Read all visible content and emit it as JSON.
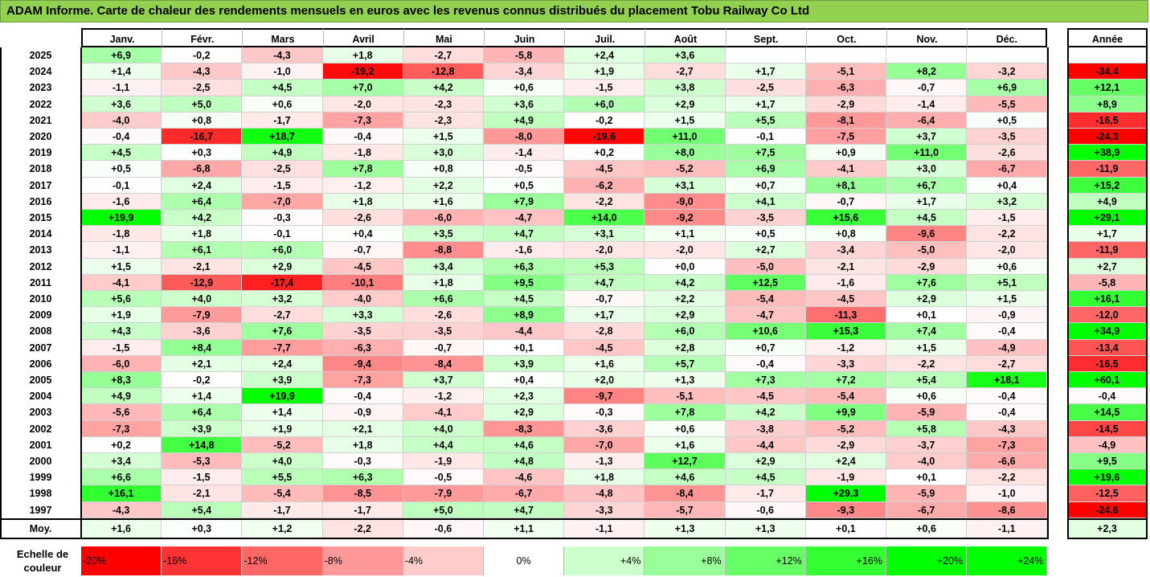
{
  "title": "ADAM Informe. Carte de chaleur des rendements mensuels en euros avec les revenus connus distribués du placement Tobu Railway Co Ltd",
  "chart_data": {
    "type": "heatmap",
    "title": "ADAM Informe. Carte de chaleur des rendements mensuels en euros avec les revenus connus distribués du placement Tobu Railway Co Ltd",
    "columns": [
      "Janv.",
      "Févr.",
      "Mars",
      "Avril",
      "Mai",
      "Juin",
      "Juil.",
      "Août",
      "Sept.",
      "Oct.",
      "Nov.",
      "Déc."
    ],
    "annual_header": "Année",
    "rows": [
      {
        "year": "2025",
        "values": [
          "+6,9",
          "-0,2",
          "-4,3",
          "+1,8",
          "-2,7",
          "-5,8",
          "+2,4",
          "+3,6",
          "",
          "",
          "",
          ""
        ],
        "annual": ""
      },
      {
        "year": "2024",
        "values": [
          "+1,4",
          "-4,3",
          "-1,0",
          "-19,2",
          "-12,8",
          "-3,4",
          "+1,9",
          "-2,7",
          "+1,7",
          "-5,1",
          "+8,2",
          "-3,2"
        ],
        "annual": "-34,4"
      },
      {
        "year": "2023",
        "values": [
          "-1,1",
          "-2,5",
          "+4,5",
          "+7,0",
          "+4,2",
          "+0,6",
          "-1,5",
          "+3,8",
          "-2,5",
          "-6,3",
          "-0,7",
          "+6,9"
        ],
        "annual": "+12,1"
      },
      {
        "year": "2022",
        "values": [
          "+3,6",
          "+5,0",
          "+0,6",
          "-2,0",
          "-2,3",
          "+3,6",
          "+6,0",
          "+2,9",
          "+1,7",
          "-2,9",
          "-1,4",
          "-5,5"
        ],
        "annual": "+8,9"
      },
      {
        "year": "2021",
        "values": [
          "-4,0",
          "+0,8",
          "-1,7",
          "-7,3",
          "-2,3",
          "+4,9",
          "-0,2",
          "+1,5",
          "+5,5",
          "-8,1",
          "-6,4",
          "+0,5"
        ],
        "annual": "-16,5"
      },
      {
        "year": "2020",
        "values": [
          "-0,4",
          "-16,7",
          "+18,7",
          "-0,4",
          "+1,5",
          "-8,0",
          "-19,6",
          "+11,0",
          "-0,1",
          "-7,5",
          "+3,7",
          "-3,5"
        ],
        "annual": "-24,3"
      },
      {
        "year": "2019",
        "values": [
          "+4,5",
          "+0,3",
          "+4,9",
          "-1,8",
          "+3,0",
          "-1,4",
          "+0,2",
          "+8,0",
          "+7,5",
          "+0,9",
          "+11,0",
          "-2,6"
        ],
        "annual": "+38,9"
      },
      {
        "year": "2018",
        "values": [
          "+0,5",
          "-6,8",
          "-2,5",
          "+7,8",
          "+0,8",
          "-0,5",
          "-4,5",
          "-5,2",
          "+6,9",
          "-4,1",
          "+3,0",
          "-6,7"
        ],
        "annual": "-11,9"
      },
      {
        "year": "2017",
        "values": [
          "-0,1",
          "+2,4",
          "-1,5",
          "-1,2",
          "+2,2",
          "+0,5",
          "-6,2",
          "+3,1",
          "+0,7",
          "+8,1",
          "+6,7",
          "+0,4"
        ],
        "annual": "+15,2"
      },
      {
        "year": "2016",
        "values": [
          "-1,6",
          "+6,4",
          "-7,0",
          "+1,8",
          "+1,6",
          "+7,9",
          "-2,2",
          "-9,0",
          "+4,1",
          "-0,7",
          "+1,7",
          "+3,2"
        ],
        "annual": "+4,9"
      },
      {
        "year": "2015",
        "values": [
          "+19,9",
          "+4,2",
          "-0,3",
          "-2,6",
          "-6,0",
          "-4,7",
          "+14,0",
          "-9,2",
          "-3,5",
          "+15,6",
          "+4,5",
          "-1,5"
        ],
        "annual": "+29,1"
      },
      {
        "year": "2014",
        "values": [
          "-1,8",
          "+1,8",
          "-0,1",
          "+0,4",
          "+3,5",
          "+4,7",
          "+3,1",
          "+1,1",
          "+0,5",
          "+0,8",
          "-9,6",
          "-2,2"
        ],
        "annual": "+1,7"
      },
      {
        "year": "2013",
        "values": [
          "-1,1",
          "+6,1",
          "+6,0",
          "-0,7",
          "-8,8",
          "-1,6",
          "-2,0",
          "-2,0",
          "+2,7",
          "-3,4",
          "-5,0",
          "-2,0"
        ],
        "annual": "-11,9"
      },
      {
        "year": "2012",
        "values": [
          "+1,5",
          "-2,1",
          "+2,9",
          "-4,5",
          "+3,4",
          "+6,3",
          "+5,3",
          "+0,0",
          "-5,0",
          "-2,1",
          "-2,9",
          "+0,6"
        ],
        "annual": "+2,7"
      },
      {
        "year": "2011",
        "values": [
          "-4,1",
          "-12,9",
          "-17,4",
          "-10,1",
          "+1,8",
          "+9,5",
          "+4,7",
          "+4,2",
          "+12,5",
          "-1,6",
          "+7,6",
          "+5,1"
        ],
        "annual": "-5,8"
      },
      {
        "year": "2010",
        "values": [
          "+5,6",
          "+4,0",
          "+3,2",
          "-4,0",
          "+6,6",
          "+4,5",
          "-0,7",
          "+2,2",
          "-5,4",
          "-4,5",
          "+2,9",
          "+1,5"
        ],
        "annual": "+16,1"
      },
      {
        "year": "2009",
        "values": [
          "+1,9",
          "-7,9",
          "-2,7",
          "+3,3",
          "-2,6",
          "+8,9",
          "+1,7",
          "+2,9",
          "-4,7",
          "-11,3",
          "+0,1",
          "-0,9"
        ],
        "annual": "-12,0"
      },
      {
        "year": "2008",
        "values": [
          "+4,3",
          "-3,6",
          "+7,6",
          "-3,5",
          "-3,5",
          "-4,4",
          "-2,8",
          "+6,0",
          "+10,6",
          "+15,3",
          "+7,4",
          "-0,4"
        ],
        "annual": "+34,9"
      },
      {
        "year": "2007",
        "values": [
          "-1,5",
          "+8,4",
          "-7,7",
          "-6,3",
          "-0,7",
          "+0,1",
          "-4,5",
          "+2,8",
          "+0,7",
          "-1,2",
          "+1,5",
          "-4,9"
        ],
        "annual": "-13,4"
      },
      {
        "year": "2006",
        "values": [
          "-6,0",
          "+2,1",
          "+2,4",
          "-9,4",
          "-8,4",
          "+3,9",
          "+1,6",
          "+5,7",
          "-0,4",
          "-3,3",
          "-2,2",
          "-2,7"
        ],
        "annual": "-16,5"
      },
      {
        "year": "2005",
        "values": [
          "+8,3",
          "-0,2",
          "+3,9",
          "-7,3",
          "+3,7",
          "+0,4",
          "+2,0",
          "+1,3",
          "+7,3",
          "+7,2",
          "+5,4",
          "+18,1"
        ],
        "annual": "+60,1"
      },
      {
        "year": "2004",
        "values": [
          "+4,9",
          "+1,4",
          "+19,9",
          "-0,4",
          "-1,2",
          "+2,3",
          "-9,7",
          "-5,1",
          "-4,5",
          "-5,4",
          "+0,6",
          "-0,4"
        ],
        "annual": "-0,4"
      },
      {
        "year": "2003",
        "values": [
          "-5,6",
          "+6,4",
          "+1,4",
          "-0,9",
          "-4,1",
          "+2,9",
          "-0,3",
          "+7,8",
          "+4,2",
          "+9,9",
          "-5,9",
          "-0,4"
        ],
        "annual": "+14,5"
      },
      {
        "year": "2002",
        "values": [
          "-7,3",
          "+3,9",
          "+1,9",
          "+2,1",
          "+4,0",
          "-8,3",
          "-3,6",
          "+0,6",
          "-3,8",
          "-5,2",
          "+5,8",
          "-4,3"
        ],
        "annual": "-14,5"
      },
      {
        "year": "2001",
        "values": [
          "+0,2",
          "+14,8",
          "-5,2",
          "+1,8",
          "+4,4",
          "+4,6",
          "-7,0",
          "+1,6",
          "-4,4",
          "-2,9",
          "-3,7",
          "-7,3"
        ],
        "annual": "-4,9"
      },
      {
        "year": "2000",
        "values": [
          "+3,4",
          "-5,3",
          "+4,0",
          "-0,3",
          "-1,9",
          "+4,8",
          "-1,3",
          "+12,7",
          "+2,9",
          "+2,4",
          "-4,0",
          "-6,6"
        ],
        "annual": "+9,5"
      },
      {
        "year": "1999",
        "values": [
          "+6,6",
          "-1,5",
          "+5,5",
          "+6,3",
          "-0,5",
          "-4,6",
          "+1,8",
          "+4,6",
          "+4,5",
          "-1,9",
          "+0,1",
          "-2,2"
        ],
        "annual": "+19,6"
      },
      {
        "year": "1998",
        "values": [
          "+16,1",
          "-2,1",
          "-5,4",
          "-8,5",
          "-7,9",
          "-6,7",
          "-4,8",
          "-8,4",
          "-1,7",
          "+29,3",
          "-5,9",
          "-1,0"
        ],
        "annual": "-12,5"
      },
      {
        "year": "1997",
        "values": [
          "-4,3",
          "+5,4",
          "-1,7",
          "-1,7",
          "+5,0",
          "+4,7",
          "-3,3",
          "-5,7",
          "-0,6",
          "-9,3",
          "-6,7",
          "-8,6"
        ],
        "annual": "-24,6"
      }
    ],
    "average": {
      "label": "Moy.",
      "values": [
        "+1,6",
        "+0,3",
        "+1,2",
        "-2,2",
        "-0,6",
        "+1,1",
        "-1,1",
        "+1,3",
        "+1,3",
        "+0,1",
        "+0,6",
        "-1,1"
      ],
      "annual": "+2,3"
    },
    "color_scale": {
      "label_line1": "Echelle de",
      "label_line2": "couleur",
      "stops": [
        {
          "label": "-20%",
          "value": -20,
          "color": "#ff0000"
        },
        {
          "label": "-16%",
          "value": -16,
          "color": "#ff3333"
        },
        {
          "label": "-12%",
          "value": -12,
          "color": "#ff6666"
        },
        {
          "label": "-8%",
          "value": -8,
          "color": "#ff9999"
        },
        {
          "label": "-4%",
          "value": -4,
          "color": "#ffcccc"
        },
        {
          "label": "0%",
          "value": 0,
          "color": "#ffffff"
        },
        {
          "label": "+4%",
          "value": 4,
          "color": "#ccffcc"
        },
        {
          "label": "+8%",
          "value": 8,
          "color": "#99ff99"
        },
        {
          "label": "+12%",
          "value": 12,
          "color": "#66ff66"
        },
        {
          "label": "+16%",
          "value": 16,
          "color": "#33ff33"
        },
        {
          "label": "+20%",
          "value": 20,
          "color": "#00ff00"
        },
        {
          "label": "+24%",
          "value": 24,
          "color": "#00ff00"
        }
      ]
    }
  },
  "colors": {
    "title_bar": "#92d050"
  }
}
